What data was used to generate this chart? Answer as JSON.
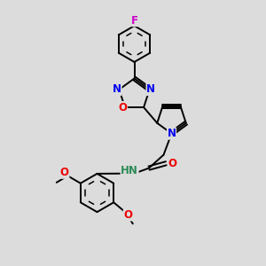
{
  "bg_color": "#dcdcdc",
  "bond_color": "#000000",
  "bond_width": 1.4,
  "atom_colors": {
    "N": "#0000ee",
    "O": "#ee0000",
    "F": "#cc00cc",
    "H": "#2e8b57",
    "C": "#000000"
  },
  "font_size": 8.5
}
